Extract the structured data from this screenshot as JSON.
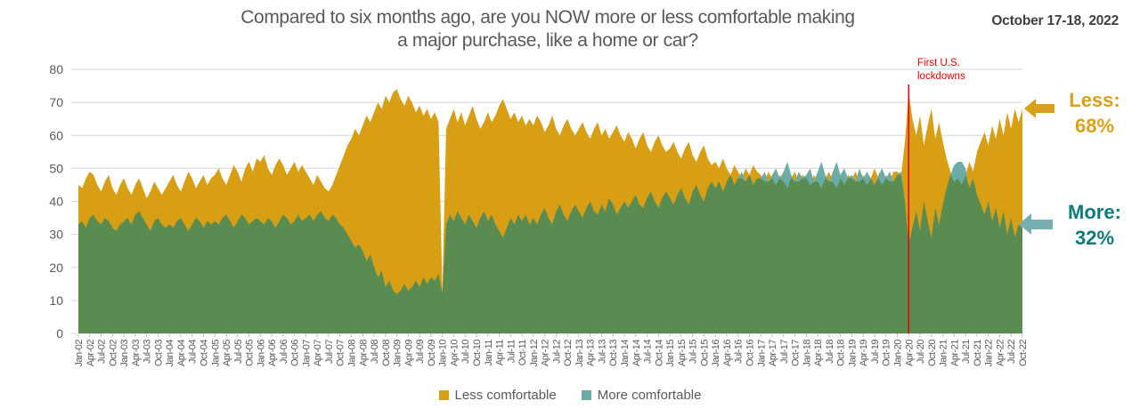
{
  "header": {
    "title_line1": "Compared to six months ago, are you NOW more or less comfortable making",
    "title_line2": "a major purchase, like a home or car?",
    "date_label": "October 17-18, 2022"
  },
  "annotations": {
    "lockdown_note": "First U.S. lockdowns",
    "less": {
      "label": "Less:",
      "value": "68%",
      "color": "#d9a01c"
    },
    "more": {
      "label": "More:",
      "value": "32%",
      "color": "#0e7b7b",
      "arrow_color": "#76afb2"
    }
  },
  "legend": {
    "items": [
      {
        "label": "Less comfortable",
        "color": "#d99f14"
      },
      {
        "label": "More comfortable",
        "color": "#6caca6"
      }
    ]
  },
  "chart_data": {
    "type": "area",
    "title": "Compared to six months ago, are you NOW more or less comfortable making a major purchase, like a home or car?",
    "xlabel": "",
    "ylabel": "",
    "ylim": [
      0,
      80
    ],
    "y_ticks": [
      0,
      10,
      20,
      30,
      40,
      50,
      60,
      70,
      80
    ],
    "grid": true,
    "legend_position": "bottom",
    "x_frequency": "monthly",
    "x_tick_labels": [
      "Jan-02",
      "Apr-02",
      "Jul-02",
      "Oct-02",
      "Jan-03",
      "Apr-03",
      "Jul-03",
      "Oct-03",
      "Jan-04",
      "Apr-04",
      "Jul-04",
      "Oct-04",
      "Jan-05",
      "Apr-05",
      "Jul-05",
      "Oct-05",
      "Jan-06",
      "Apr-06",
      "Jul-06",
      "Oct-06",
      "Jan-07",
      "Apr-07",
      "Jul-07",
      "Oct-07",
      "Jan-08",
      "Apr-08",
      "Jul-08",
      "Oct-08",
      "Jan-09",
      "Apr-09",
      "Jul-09",
      "Oct-09",
      "Jan-10",
      "Apr-10",
      "Jul-10",
      "Oct-10",
      "Jan-11",
      "Apr-11",
      "Jul-11",
      "Oct-11",
      "Jan-12",
      "Apr-12",
      "Jul-12",
      "Oct-12",
      "Jan-13",
      "Apr-13",
      "Jul-13",
      "Oct-13",
      "Jan-14",
      "Apr-14",
      "Jul-14",
      "Oct-14",
      "Jan-15",
      "Apr-15",
      "Jul-15",
      "Oct-15",
      "Jan-16",
      "Apr-16",
      "Jul-16",
      "Oct-16",
      "Jan-17",
      "Apr-17",
      "Jul-17",
      "Oct-17",
      "Jan-18",
      "Apr-18",
      "Jul-18",
      "Oct-18",
      "Jan-19",
      "Apr-19",
      "Jul-19",
      "Oct-19",
      "Jan-20",
      "Apr-20",
      "Jul-20",
      "Oct-20",
      "Jan-21",
      "Apr-21",
      "Jul-21",
      "Oct-21",
      "Jan-22",
      "Apr-22",
      "Jul-22",
      "Oct-22"
    ],
    "event_marker": {
      "label": "First U.S. lockdowns",
      "x_label": "Apr-20",
      "month_index": 219,
      "color": "#e60000"
    },
    "overlap_color": "#5a8c52",
    "series": [
      {
        "name": "Less comfortable",
        "color": "#d99f14",
        "values": [
          45,
          44,
          47,
          49,
          48,
          45,
          43,
          46,
          48,
          44,
          42,
          45,
          47,
          44,
          42,
          45,
          47,
          44,
          41,
          43,
          46,
          44,
          42,
          44,
          46,
          48,
          45,
          43,
          46,
          49,
          47,
          44,
          46,
          48,
          45,
          47,
          48,
          50,
          47,
          45,
          48,
          51,
          49,
          46,
          50,
          52,
          49,
          53,
          52,
          54,
          50,
          48,
          51,
          53,
          51,
          48,
          50,
          52,
          49,
          51,
          49,
          47,
          45,
          48,
          46,
          44,
          43,
          45,
          48,
          51,
          54,
          57,
          59,
          62,
          60,
          63,
          66,
          64,
          67,
          70,
          68,
          72,
          70,
          73,
          74,
          71,
          69,
          72,
          70,
          67,
          69,
          66,
          68,
          65,
          67,
          64,
          13,
          62,
          65,
          68,
          64,
          67,
          63,
          66,
          69,
          65,
          62,
          64,
          67,
          64,
          66,
          69,
          71,
          68,
          65,
          67,
          64,
          66,
          63,
          65,
          63,
          66,
          64,
          61,
          63,
          66,
          62,
          60,
          63,
          65,
          62,
          60,
          62,
          64,
          61,
          59,
          62,
          64,
          60,
          62,
          59,
          61,
          63,
          60,
          58,
          61,
          59,
          56,
          59,
          61,
          57,
          55,
          58,
          60,
          57,
          55,
          56,
          58,
          55,
          53,
          56,
          58,
          54,
          52,
          55,
          57,
          53,
          51,
          52,
          50,
          53,
          50,
          48,
          51,
          49,
          47,
          50,
          48,
          51,
          49,
          48,
          46,
          49,
          47,
          45,
          48,
          46,
          44,
          47,
          49,
          46,
          48,
          47,
          45,
          48,
          46,
          44,
          47,
          49,
          46,
          44,
          47,
          45,
          48,
          47,
          49,
          46,
          48,
          45,
          47,
          50,
          47,
          45,
          48,
          46,
          49,
          49,
          48,
          58,
          73,
          65,
          60,
          66,
          57,
          63,
          68,
          59,
          64,
          58,
          53,
          49,
          46,
          47,
          45,
          48,
          52,
          49,
          55,
          58,
          61,
          57,
          63,
          59,
          65,
          60,
          67,
          62,
          68,
          64,
          68
        ]
      },
      {
        "name": "More comfortable",
        "color": "#6caca6",
        "values": [
          33,
          34,
          32,
          35,
          36,
          34,
          33,
          35,
          34,
          32,
          31,
          33,
          34,
          35,
          33,
          36,
          37,
          35,
          33,
          31,
          34,
          35,
          33,
          32,
          33,
          32,
          34,
          35,
          33,
          31,
          33,
          35,
          34,
          32,
          34,
          33,
          34,
          33,
          35,
          36,
          34,
          32,
          34,
          36,
          35,
          33,
          34,
          35,
          34,
          33,
          35,
          34,
          32,
          34,
          36,
          35,
          33,
          34,
          36,
          34,
          35,
          36,
          34,
          36,
          37,
          35,
          34,
          36,
          35,
          33,
          32,
          30,
          28,
          26,
          27,
          25,
          22,
          24,
          20,
          17,
          19,
          14,
          16,
          13,
          12,
          13,
          15,
          13,
          14,
          16,
          14,
          17,
          15,
          17,
          16,
          18,
          12,
          33,
          36,
          34,
          37,
          35,
          33,
          36,
          34,
          32,
          35,
          37,
          34,
          36,
          33,
          31,
          29,
          32,
          35,
          33,
          36,
          34,
          36,
          33,
          35,
          33,
          36,
          38,
          35,
          33,
          37,
          39,
          36,
          34,
          37,
          39,
          37,
          35,
          38,
          40,
          37,
          36,
          39,
          37,
          41,
          39,
          36,
          38,
          40,
          38,
          40,
          42,
          39,
          38,
          41,
          43,
          40,
          38,
          41,
          43,
          41,
          39,
          42,
          44,
          41,
          39,
          43,
          45,
          42,
          40,
          44,
          46,
          44,
          46,
          43,
          46,
          48,
          45,
          47,
          49,
          46,
          48,
          45,
          47,
          47,
          49,
          46,
          48,
          50,
          47,
          49,
          52,
          48,
          46,
          49,
          47,
          48,
          50,
          46,
          49,
          52,
          48,
          46,
          49,
          52,
          48,
          50,
          47,
          48,
          46,
          50,
          47,
          49,
          47,
          45,
          48,
          50,
          47,
          49,
          46,
          48,
          49,
          40,
          27,
          32,
          37,
          31,
          40,
          34,
          29,
          38,
          33,
          39,
          44,
          48,
          51,
          52,
          52,
          50,
          44,
          47,
          42,
          39,
          36,
          40,
          34,
          38,
          32,
          37,
          30,
          35,
          29,
          33,
          32
        ]
      }
    ]
  }
}
